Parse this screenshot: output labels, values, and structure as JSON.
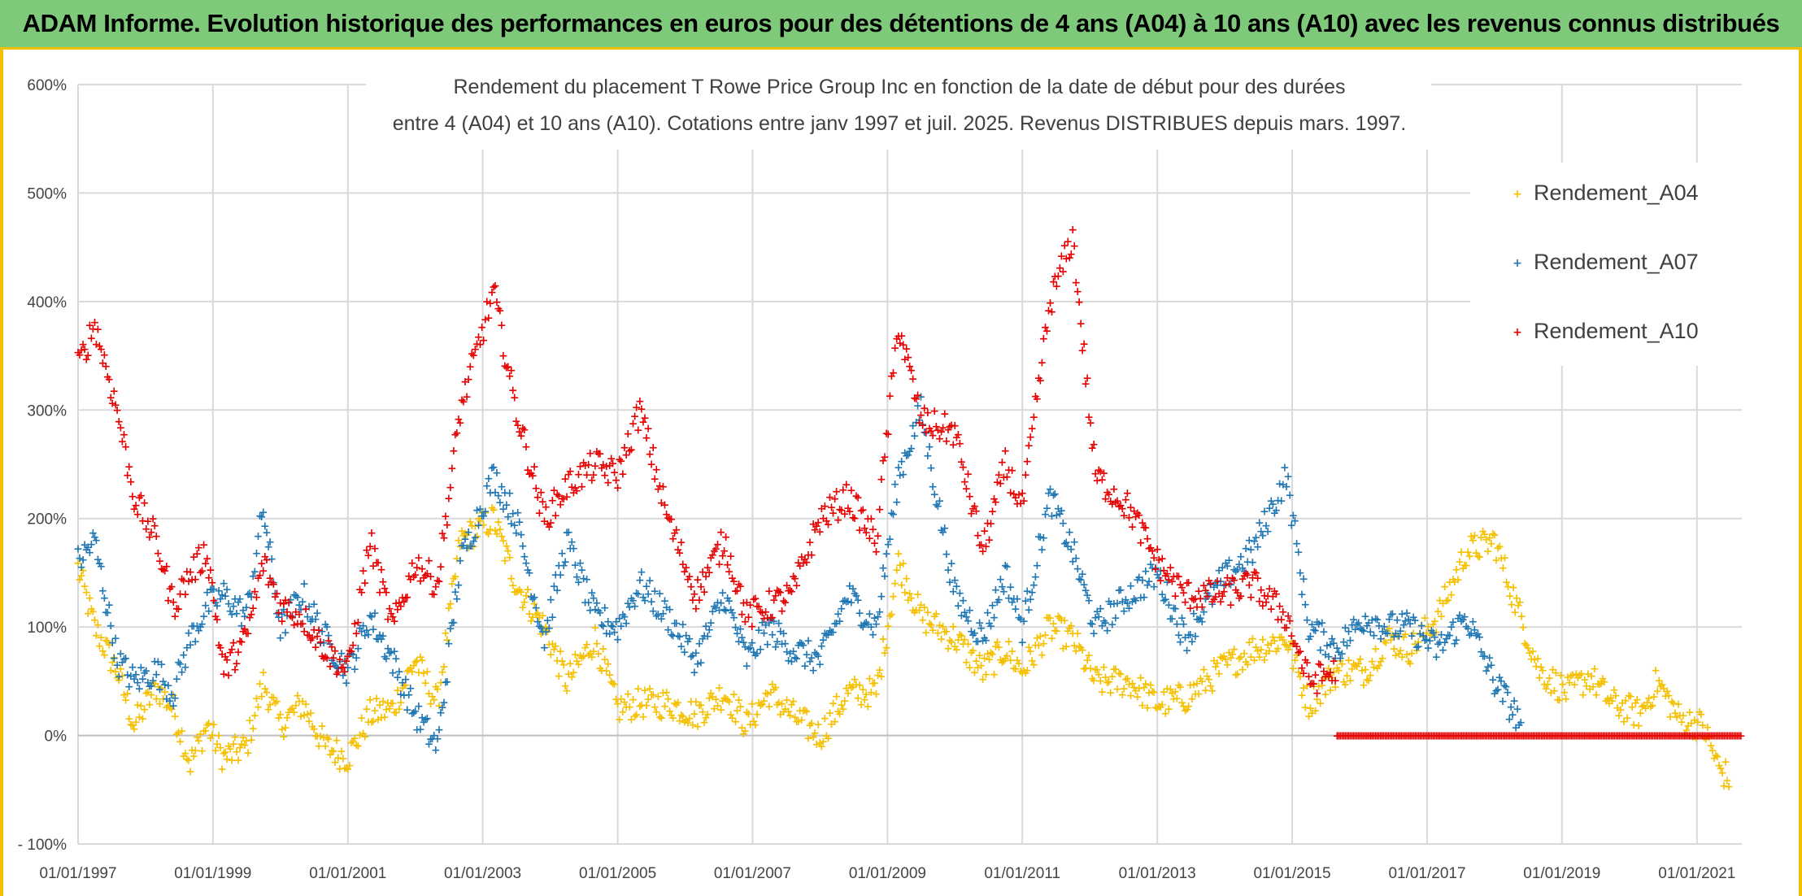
{
  "banner": {
    "title": "ADAM Informe. Evolution historique des performances en euros pour des détentions de 4 ans (A04) à 10 ans (A10) avec les revenus connus distribués"
  },
  "colors": {
    "A04": "#f5c000",
    "A07": "#1f77b4",
    "A10": "#e60000",
    "banner_bg": "#7ec97a",
    "accent": "#f0c000"
  },
  "chart_data": {
    "type": "scatter",
    "title_line1": "Rendement du placement T Rowe Price Group Inc en fonction de la date de début pour des durées",
    "title_line2": "entre 4 (A04) et 10 ans (A10). Cotations entre janv 1997 et juil. 2025. Revenus DISTRIBUES depuis mars. 1997.",
    "xlabel": "",
    "ylabel": "",
    "x_ticks": [
      "01/01/1997",
      "01/01/1999",
      "01/01/2001",
      "01/01/2003",
      "01/01/2005",
      "01/01/2007",
      "01/01/2009",
      "01/01/2011",
      "01/01/2013",
      "01/01/2015",
      "01/01/2017",
      "01/01/2019",
      "01/01/2021"
    ],
    "y_ticks": [
      "600%",
      "500%",
      "400%",
      "300%",
      "200%",
      "100%",
      "0%",
      "- 100%"
    ],
    "ylim": [
      -100,
      600
    ],
    "xlim": [
      "1997-01-01",
      "2021-09-01"
    ],
    "grid": true,
    "legend_position": "top-right",
    "series": [
      {
        "name": "Rendement_A04",
        "color_key": "A04",
        "end": "2021-07-01",
        "points": [
          [
            "1997-01-01",
            155
          ],
          [
            "1997-04-01",
            100
          ],
          [
            "1997-08-01",
            60
          ],
          [
            "1997-11-01",
            10
          ],
          [
            "1998-03-01",
            45
          ],
          [
            "1998-06-01",
            25
          ],
          [
            "1998-09-01",
            -25
          ],
          [
            "1998-12-01",
            10
          ],
          [
            "1999-03-01",
            -20
          ],
          [
            "1999-07-01",
            -10
          ],
          [
            "1999-10-01",
            50
          ],
          [
            "2000-01-01",
            10
          ],
          [
            "2000-05-01",
            30
          ],
          [
            "2000-09-01",
            -10
          ],
          [
            "2001-01-01",
            -20
          ],
          [
            "2001-05-01",
            20
          ],
          [
            "2001-09-01",
            25
          ],
          [
            "2002-01-01",
            70
          ],
          [
            "2002-05-01",
            30
          ],
          [
            "2002-09-01",
            180
          ],
          [
            "2003-03-01",
            200
          ],
          [
            "2003-07-01",
            140
          ],
          [
            "2003-12-01",
            100
          ],
          [
            "2004-04-01",
            50
          ],
          [
            "2004-09-01",
            90
          ],
          [
            "2005-01-01",
            25
          ],
          [
            "2005-05-01",
            30
          ],
          [
            "2005-10-01",
            30
          ],
          [
            "2006-03-01",
            20
          ],
          [
            "2006-08-01",
            40
          ],
          [
            "2006-12-01",
            10
          ],
          [
            "2007-04-01",
            40
          ],
          [
            "2007-08-01",
            20
          ],
          [
            "2008-01-01",
            0
          ],
          [
            "2008-06-01",
            40
          ],
          [
            "2008-11-01",
            40
          ],
          [
            "2009-03-01",
            160
          ],
          [
            "2009-07-01",
            110
          ],
          [
            "2010-01-01",
            90
          ],
          [
            "2010-06-01",
            60
          ],
          [
            "2010-10-01",
            80
          ],
          [
            "2011-01-01",
            60
          ],
          [
            "2011-06-01",
            100
          ],
          [
            "2011-10-01",
            90
          ],
          [
            "2012-02-01",
            50
          ],
          [
            "2012-08-01",
            50
          ],
          [
            "2013-01-01",
            30
          ],
          [
            "2013-06-01",
            35
          ],
          [
            "2013-12-01",
            60
          ],
          [
            "2014-06-01",
            80
          ],
          [
            "2014-12-01",
            90
          ],
          [
            "2015-04-01",
            30
          ],
          [
            "2015-09-01",
            60
          ],
          [
            "2016-02-01",
            60
          ],
          [
            "2016-06-01",
            90
          ],
          [
            "2016-10-01",
            80
          ],
          [
            "2017-03-01",
            110
          ],
          [
            "2017-08-01",
            170
          ],
          [
            "2018-01-01",
            180
          ],
          [
            "2018-05-01",
            120
          ],
          [
            "2018-09-01",
            60
          ],
          [
            "2019-02-01",
            40
          ],
          [
            "2019-06-01",
            55
          ],
          [
            "2019-10-01",
            30
          ],
          [
            "2020-03-01",
            20
          ],
          [
            "2020-06-01",
            50
          ],
          [
            "2020-10-01",
            15
          ],
          [
            "2021-02-01",
            10
          ],
          [
            "2021-05-01",
            -30
          ],
          [
            "2021-07-01",
            -40
          ]
        ]
      },
      {
        "name": "Rendement_A07",
        "color_key": "A07",
        "end": "2018-06-01",
        "points": [
          [
            "1997-01-01",
            160
          ],
          [
            "1997-04-01",
            180
          ],
          [
            "1997-08-01",
            70
          ],
          [
            "1997-11-01",
            50
          ],
          [
            "1998-03-01",
            60
          ],
          [
            "1998-06-01",
            40
          ],
          [
            "1998-09-01",
            90
          ],
          [
            "1998-12-01",
            120
          ],
          [
            "1999-03-01",
            130
          ],
          [
            "1999-07-01",
            110
          ],
          [
            "1999-10-01",
            210
          ],
          [
            "2000-01-01",
            100
          ],
          [
            "2000-05-01",
            130
          ],
          [
            "2000-09-01",
            90
          ],
          [
            "2001-01-01",
            60
          ],
          [
            "2001-05-01",
            110
          ],
          [
            "2001-09-01",
            70
          ],
          [
            "2002-01-01",
            20
          ],
          [
            "2002-05-01",
            -10
          ],
          [
            "2002-09-01",
            160
          ],
          [
            "2003-03-01",
            240
          ],
          [
            "2003-07-01",
            200
          ],
          [
            "2003-12-01",
            90
          ],
          [
            "2004-04-01",
            180
          ],
          [
            "2004-09-01",
            110
          ],
          [
            "2005-01-01",
            100
          ],
          [
            "2005-05-01",
            140
          ],
          [
            "2005-10-01",
            110
          ],
          [
            "2006-03-01",
            70
          ],
          [
            "2006-08-01",
            130
          ],
          [
            "2006-12-01",
            70
          ],
          [
            "2007-04-01",
            100
          ],
          [
            "2007-08-01",
            80
          ],
          [
            "2008-01-01",
            70
          ],
          [
            "2008-06-01",
            130
          ],
          [
            "2008-11-01",
            100
          ],
          [
            "2009-03-01",
            240
          ],
          [
            "2009-07-01",
            300
          ],
          [
            "2010-01-01",
            130
          ],
          [
            "2010-06-01",
            90
          ],
          [
            "2010-10-01",
            150
          ],
          [
            "2011-01-01",
            100
          ],
          [
            "2011-06-01",
            220
          ],
          [
            "2011-10-01",
            170
          ],
          [
            "2012-02-01",
            100
          ],
          [
            "2012-08-01",
            130
          ],
          [
            "2013-01-01",
            150
          ],
          [
            "2013-06-01",
            90
          ],
          [
            "2013-12-01",
            140
          ],
          [
            "2014-06-01",
            170
          ],
          [
            "2014-12-01",
            240
          ],
          [
            "2015-04-01",
            100
          ],
          [
            "2015-09-01",
            80
          ],
          [
            "2016-02-01",
            110
          ],
          [
            "2016-06-01",
            100
          ],
          [
            "2016-10-01",
            100
          ],
          [
            "2017-03-01",
            80
          ],
          [
            "2017-08-01",
            110
          ],
          [
            "2018-01-01",
            50
          ],
          [
            "2018-06-01",
            10
          ]
        ]
      },
      {
        "name": "Rendement_A10",
        "color_key": "A10",
        "end": "2015-09-01",
        "points": [
          [
            "1997-01-01",
            340
          ],
          [
            "1997-04-01",
            380
          ],
          [
            "1997-08-01",
            300
          ],
          [
            "1997-11-01",
            220
          ],
          [
            "1998-03-01",
            180
          ],
          [
            "1998-06-01",
            120
          ],
          [
            "1998-09-01",
            150
          ],
          [
            "1998-12-01",
            170
          ],
          [
            "1999-03-01",
            60
          ],
          [
            "1999-07-01",
            90
          ],
          [
            "1999-10-01",
            160
          ],
          [
            "2000-01-01",
            120
          ],
          [
            "2000-05-01",
            110
          ],
          [
            "2000-09-01",
            80
          ],
          [
            "2001-01-01",
            60
          ],
          [
            "2001-05-01",
            180
          ],
          [
            "2001-09-01",
            100
          ],
          [
            "2002-01-01",
            160
          ],
          [
            "2002-05-01",
            140
          ],
          [
            "2002-09-01",
            300
          ],
          [
            "2003-03-01",
            410
          ],
          [
            "2003-07-01",
            300
          ],
          [
            "2003-12-01",
            200
          ],
          [
            "2004-04-01",
            230
          ],
          [
            "2004-09-01",
            250
          ],
          [
            "2005-01-01",
            240
          ],
          [
            "2005-05-01",
            300
          ],
          [
            "2005-10-01",
            200
          ],
          [
            "2006-03-01",
            130
          ],
          [
            "2006-08-01",
            180
          ],
          [
            "2006-12-01",
            110
          ],
          [
            "2007-04-01",
            120
          ],
          [
            "2007-08-01",
            130
          ],
          [
            "2008-01-01",
            200
          ],
          [
            "2008-06-01",
            220
          ],
          [
            "2008-11-01",
            180
          ],
          [
            "2009-03-01",
            380
          ],
          [
            "2009-07-01",
            290
          ],
          [
            "2010-01-01",
            280
          ],
          [
            "2010-06-01",
            170
          ],
          [
            "2010-10-01",
            250
          ],
          [
            "2011-01-01",
            210
          ],
          [
            "2011-06-01",
            400
          ],
          [
            "2011-10-01",
            460
          ],
          [
            "2012-02-01",
            240
          ],
          [
            "2012-08-01",
            210
          ],
          [
            "2013-01-01",
            160
          ],
          [
            "2013-06-01",
            130
          ],
          [
            "2013-12-01",
            130
          ],
          [
            "2014-06-01",
            140
          ],
          [
            "2014-12-01",
            110
          ],
          [
            "2015-04-01",
            50
          ],
          [
            "2015-09-01",
            60
          ]
        ]
      }
    ],
    "flat_zero_segment": {
      "from": "2015-09-01",
      "to": "2021-09-01",
      "value": 0,
      "color_key": "A10"
    }
  }
}
